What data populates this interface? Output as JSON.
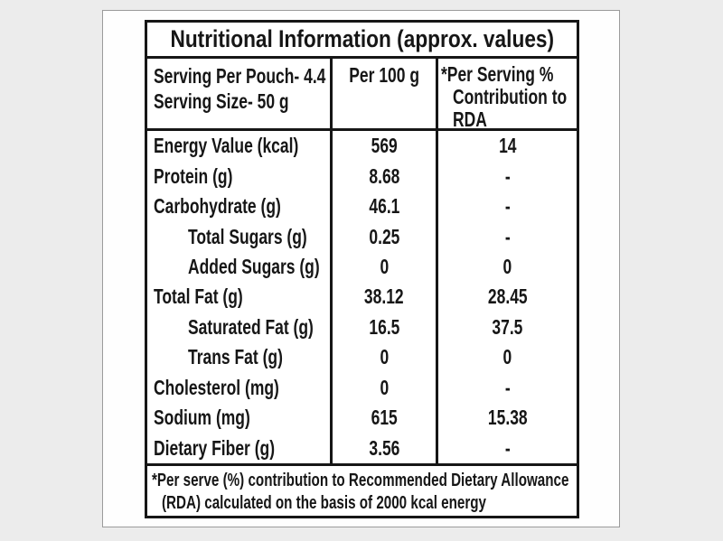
{
  "colors": {
    "page_background": "#ececec",
    "card_background": "#fefefe",
    "card_border": "#9b9b9b",
    "table_border": "#161616",
    "text": "#161616"
  },
  "artifact": {
    "dash": "-"
  },
  "table": {
    "title": "Nutritional Information (approx. values)",
    "header": {
      "col1_lines": [
        "Serving Per Pouch- 4.4",
        "Serving Size- 50 g"
      ],
      "col2": "Per 100 g",
      "col3_lines": [
        "*Per Serving %",
        "Contribution to",
        "RDA"
      ]
    },
    "rows": [
      {
        "label": "Energy Value (kcal)",
        "indent": false,
        "per100": "569",
        "rda": "14"
      },
      {
        "label": "Protein (g)",
        "indent": false,
        "per100": "8.68",
        "rda": "-"
      },
      {
        "label": "Carbohydrate (g)",
        "indent": false,
        "per100": "46.1",
        "rda": "-"
      },
      {
        "label": "Total Sugars (g)",
        "indent": true,
        "per100": "0.25",
        "rda": "-"
      },
      {
        "label": "Added Sugars (g)",
        "indent": true,
        "per100": "0",
        "rda": "0"
      },
      {
        "label": "Total Fat (g)",
        "indent": false,
        "per100": "38.12",
        "rda": "28.45"
      },
      {
        "label": "Saturated Fat (g)",
        "indent": true,
        "per100": "16.5",
        "rda": "37.5"
      },
      {
        "label": "Trans Fat (g)",
        "indent": true,
        "per100": "0",
        "rda": "0"
      },
      {
        "label": "Cholesterol (mg)",
        "indent": false,
        "per100": "0",
        "rda": "-"
      },
      {
        "label": "Sodium (mg)",
        "indent": false,
        "per100": "615",
        "rda": "15.38"
      },
      {
        "label": "Dietary Fiber (g)",
        "indent": false,
        "per100": "3.56",
        "rda": "-"
      }
    ],
    "footnote_lines": [
      "*Per serve (%) contribution to Recommended Dietary Allowance",
      "(RDA) calculated on the basis of 2000 kcal energy"
    ]
  }
}
